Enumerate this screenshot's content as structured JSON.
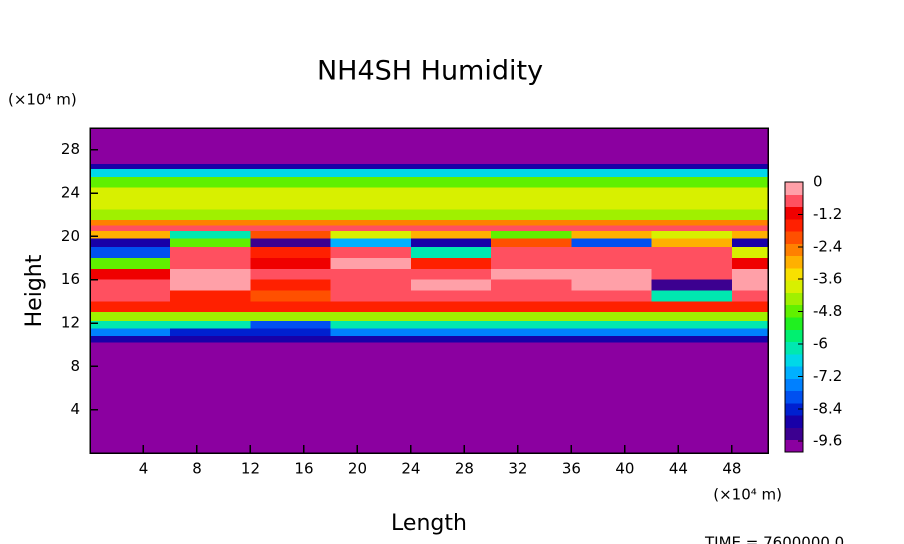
{
  "chart_data": {
    "type": "heatmap",
    "title": "NH4SH Humidity",
    "x_label": "Length",
    "y_label": "Height",
    "x_unit": "(×10⁴ m)",
    "y_unit": "(×10⁴ m)",
    "footer": "TIME = 7600000.0",
    "xlim": [
      0,
      50.7
    ],
    "ylim": [
      0,
      30
    ],
    "xticks": [
      4,
      8,
      12,
      16,
      20,
      24,
      28,
      32,
      36,
      40,
      44,
      48
    ],
    "yticks": [
      4,
      8,
      12,
      16,
      20,
      24,
      28
    ],
    "x_edges": [
      0,
      6,
      12,
      18,
      24,
      30,
      36,
      42,
      48,
      50.7
    ],
    "y_edges": [
      0,
      10.2,
      10.8,
      11.5,
      12.2,
      13,
      14,
      15,
      16,
      17,
      18,
      19,
      19.8,
      20.5,
      21,
      21.5,
      22.5,
      23.5,
      24.5,
      25.5,
      26.2,
      26.7,
      30
    ],
    "values": [
      [
        -10,
        -10,
        -10,
        -10,
        -10,
        -10,
        -10,
        -10,
        -10
      ],
      [
        -9.2,
        -9.2,
        -9.2,
        -9.2,
        -9.2,
        -9.2,
        -9.2,
        -9.2,
        -9.2
      ],
      [
        -7.5,
        -8.6,
        -8.6,
        -7.5,
        -7.5,
        -7.5,
        -7.5,
        -7.5,
        -7.5
      ],
      [
        -6,
        -6,
        -8,
        -6,
        -6,
        -6,
        -6,
        -6,
        -6
      ],
      [
        -4.5,
        -4.5,
        -4.5,
        -4.5,
        -4.5,
        -4.5,
        -4.5,
        -4.5,
        -4.5
      ],
      [
        -1.5,
        -1.5,
        -1.5,
        -1.5,
        -1.5,
        -1.5,
        -1.5,
        -1.5,
        -1.5
      ],
      [
        -0.5,
        -1.2,
        -2,
        -0.4,
        -0.3,
        -0.6,
        -0.3,
        -6,
        -0.5
      ],
      [
        -0.3,
        -0.2,
        -1.5,
        -0.3,
        -0.2,
        -0.3,
        -0.2,
        -9.5,
        -0.2
      ],
      [
        -1,
        -0.2,
        -0.6,
        -0.3,
        -0.4,
        -0.2,
        -0.2,
        -0.3,
        -0.2
      ],
      [
        -5,
        -0.3,
        -0.8,
        -0.2,
        -1.5,
        -0.3,
        -0.6,
        -0.3,
        -0.8
      ],
      [
        -8,
        -0.5,
        -1.2,
        -0.4,
        -6,
        -0.6,
        -0.4,
        -0.5,
        -4
      ],
      [
        -9,
        -5,
        -9.5,
        -7,
        -9,
        -2,
        -8,
        -3,
        -9
      ],
      [
        -3,
        -6,
        -2,
        -4,
        -3,
        -5,
        -3,
        -4,
        -3
      ],
      [
        -0.5,
        -0.5,
        -0.5,
        -0.5,
        -0.5,
        -0.5,
        -0.5,
        -0.5,
        -0.5
      ],
      [
        -2.4,
        -2.4,
        -2.4,
        -2.4,
        -2.4,
        -2.4,
        -2.4,
        -2.4,
        -2.4
      ],
      [
        -4.5,
        -4.5,
        -4.5,
        -4.5,
        -4.5,
        -4.5,
        -4.5,
        -4.5,
        -4.5
      ],
      [
        -4,
        -4,
        -4,
        -4,
        -4,
        -4,
        -4,
        -4,
        -4
      ],
      [
        -3.8,
        -3.8,
        -3.8,
        -3.8,
        -3.8,
        -3.8,
        -3.8,
        -3.8,
        -3.8
      ],
      [
        -4.6,
        -4.6,
        -4.6,
        -4.6,
        -4.6,
        -4.6,
        -4.6,
        -4.6,
        -4.6
      ],
      [
        -6.5,
        -6.5,
        -6.5,
        -6.5,
        -6.5,
        -6.5,
        -6.5,
        -6.5,
        -6.5
      ],
      [
        -9,
        -9,
        -9,
        -9,
        -9,
        -9,
        -9,
        -9,
        -9
      ],
      [
        -10,
        -10,
        -10,
        -10,
        -10,
        -10,
        -10,
        -10,
        -10
      ]
    ],
    "zlim": [
      -10,
      0
    ],
    "zticks": [
      0,
      -1.2,
      -2.4,
      -3.6,
      -4.8,
      -6,
      -7.2,
      -8.4,
      -9.6
    ],
    "colormap": [
      "#8b00a0",
      "#3c0090",
      "#1800a8",
      "#0020d0",
      "#0050f0",
      "#0080ff",
      "#00b0ff",
      "#00d8e8",
      "#00e8b0",
      "#00f070",
      "#20f020",
      "#60f000",
      "#a0f000",
      "#d8f000",
      "#f8e000",
      "#ffb000",
      "#ff8000",
      "#ff5000",
      "#ff2000",
      "#f00000",
      "#ff5060",
      "#ffa0a8"
    ]
  }
}
